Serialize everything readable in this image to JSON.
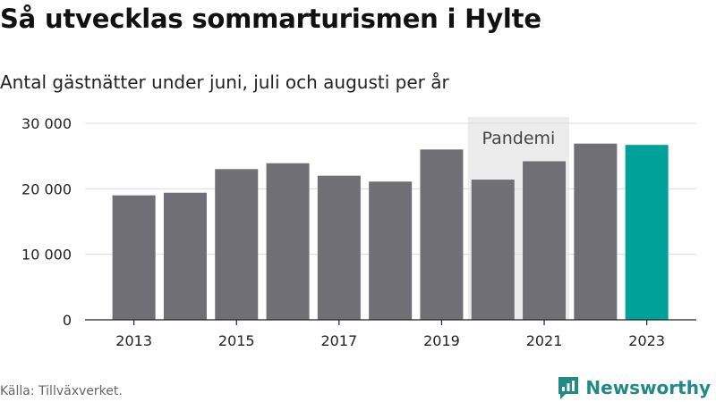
{
  "header": {
    "title": "Så utvecklas sommarturismen i Hylte",
    "subtitle": "Antal gästnätter under juni, juli och augusti per år"
  },
  "footer": {
    "source": "Källa: Tillväxverket.",
    "brand": "Newsworthy",
    "brand_icon": "newsworthy-logo-icon"
  },
  "colors": {
    "bar": "#706f75",
    "highlight": "#00a199",
    "pandemic_band": "#ececec",
    "grid": "#dddddd",
    "brand": "#1f8a86"
  },
  "chart_data": {
    "type": "bar",
    "categories": [
      "2013",
      "2014",
      "2015",
      "2016",
      "2017",
      "2018",
      "2019",
      "2020",
      "2021",
      "2022",
      "2023"
    ],
    "values": [
      19000,
      19400,
      23000,
      23900,
      22000,
      21100,
      26000,
      21400,
      24200,
      26900,
      26700
    ],
    "ylim": [
      0,
      30000
    ],
    "yticks": [
      0,
      10000,
      20000,
      30000
    ],
    "ytick_labels": [
      "0",
      "10 000",
      "20 000",
      "30 000"
    ],
    "xtick_labels": [
      "2013",
      "2015",
      "2017",
      "2019",
      "2021",
      "2023"
    ],
    "highlight_category": "2023",
    "annotation": {
      "text": "Pandemi",
      "from": "2020",
      "to": "2021"
    },
    "grid": "horizontal",
    "legend": "none"
  }
}
